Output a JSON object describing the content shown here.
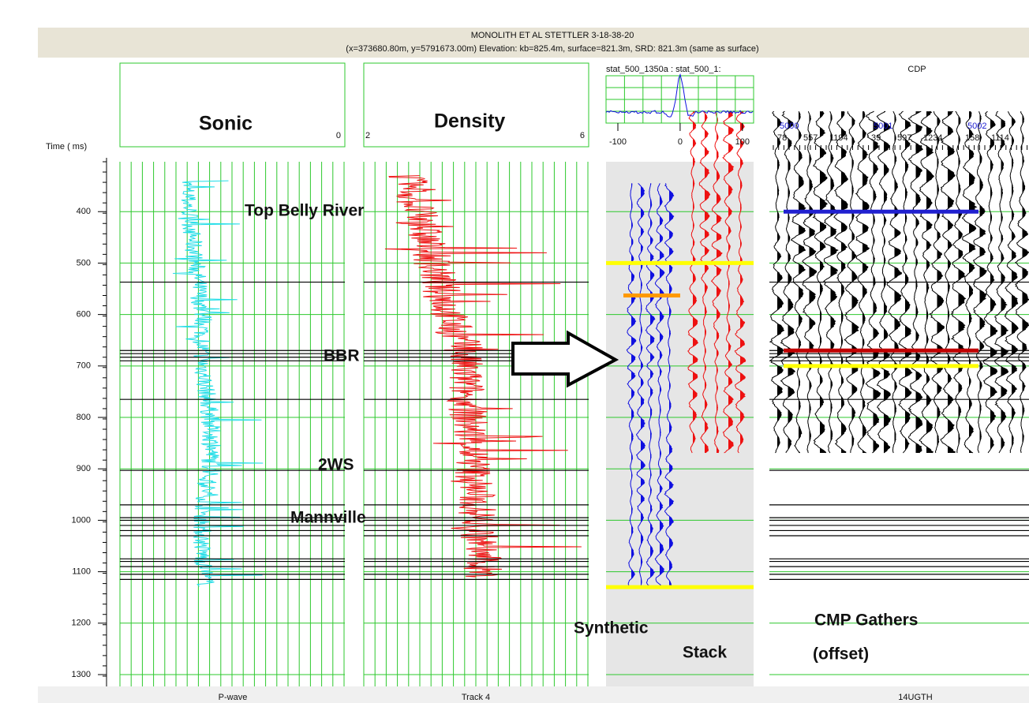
{
  "header": {
    "title": "MONOLITH ET AL STETTLER 3-18-38-20",
    "subtitle": "(x=373680.80m, y=5791673.00m) Elevation: kb=825.4m, surface=821.3m, SRD: 821.3m (same as surface)"
  },
  "time_axis": {
    "label": "Time ( ms)",
    "ylim": [
      303,
      1323
    ],
    "yticks": [
      400,
      500,
      600,
      700,
      800,
      900,
      1000,
      1100,
      1200,
      1300
    ]
  },
  "tracks": [
    {
      "title": "Sonic",
      "scale_right": 0,
      "bottom_label": "P-wave"
    },
    {
      "title": "Density",
      "scale_left": 2,
      "scale_right": 6,
      "bottom_label": "Track 4"
    }
  ],
  "correlation": {
    "title": "stat_500_1350a : stat_500_1:",
    "xlim": [
      -119,
      118
    ],
    "xticks": [
      -100,
      0,
      100
    ]
  },
  "gathers": {
    "title": "CDP",
    "bottom_label": "14UGTH",
    "cdps": [
      {
        "cdp": 5000,
        "offsets": [
          78,
          557,
          1194
        ]
      },
      {
        "cdp": 5001,
        "offsets": [
          39,
          597,
          1234
        ]
      },
      {
        "cdp": 5002,
        "offsets": [
          158,
          1114
        ]
      }
    ]
  },
  "horizons": [
    537,
    670,
    676,
    683,
    690,
    765,
    903,
    970,
    995,
    1000,
    1010,
    1020,
    1030,
    1075,
    1080,
    1090,
    1105,
    1115
  ],
  "markers": [
    {
      "time": 500,
      "color": "#ffff00",
      "panel": "synthetic"
    },
    {
      "time": 563,
      "color": "#ff9900",
      "panel": "synthetic"
    },
    {
      "time": 1130,
      "color": "#ffff00",
      "panel": "synthetic"
    },
    {
      "time": 400,
      "color": "#2020d0",
      "panel": "gathers"
    },
    {
      "time": 670,
      "color": "#c00000",
      "panel": "gathers"
    },
    {
      "time": 700,
      "color": "#ffff00",
      "panel": "gathers"
    }
  ],
  "annotations": {
    "top_belly_river": "Top Belly River",
    "bbr": "BBR",
    "two_ws": "2WS",
    "mannville": "Mannville",
    "synthetic": "Synthetic",
    "stack": "Stack",
    "cmp_gathers": "CMP Gathers",
    "offset": "(offset)"
  }
}
